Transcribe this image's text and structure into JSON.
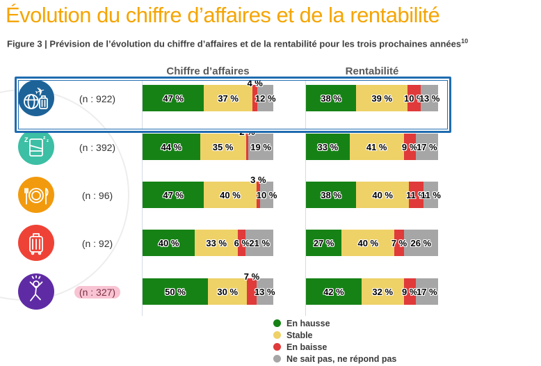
{
  "title": "Évolution du chiffre d’affaires et de la rentabilité",
  "figure_caption": "Figure 3 | Prévision de l’évolution du chiffre d’affaires et de la rentabilité pour les trois prochaines années",
  "figure_caption_sup": "10",
  "column_headers": {
    "chiffre_affaires": "Chiffre d’affaires",
    "rentabilite": "Rentabilité"
  },
  "legend": {
    "items": [
      {
        "label": "En hausse"
      },
      {
        "label": "Stable"
      },
      {
        "label": "En baisse"
      },
      {
        "label": "Ne sait pas, ne répond pas"
      }
    ]
  },
  "colors": {
    "green": "#168216",
    "yellow": "#EED167",
    "red": "#E03A3A",
    "gray": "#A6A6A6",
    "title": "#F5A502",
    "highlight": "#1F6CB0",
    "pink": "#F8C3D2",
    "header": "#595959",
    "travel": "#1D6398",
    "bed": "#3CBFA4",
    "restaurant": "#F29A0D",
    "luggage": "#EF4236",
    "person": "#5F2BA5"
  },
  "chart_data": {
    "type": "bar",
    "orientation": "horizontal",
    "stacked": true,
    "unit": "%",
    "title": "Évolution du chiffre d’affaires et de la rentabilité",
    "groups": [
      "Chiffre d’affaires",
      "Rentabilité"
    ],
    "series_names": [
      "En hausse",
      "Stable",
      "En baisse",
      "Ne sait pas, ne répond pas"
    ],
    "xlim": [
      0,
      100
    ],
    "rows": [
      {
        "n": "(n : 922)",
        "icon": "travel-icon",
        "highlighted": true,
        "chiffre_affaires": {
          "values": [
            47,
            37,
            4,
            12
          ],
          "labels": [
            "47 %",
            "37 %",
            "4 %",
            "12 %"
          ]
        },
        "rentabilite": {
          "values": [
            38,
            39,
            10,
            13
          ],
          "labels": [
            "38 %",
            "39 %",
            "10 %",
            "13 %"
          ]
        }
      },
      {
        "n": "(n : 392)",
        "icon": "bed-icon",
        "highlighted": false,
        "chiffre_affaires": {
          "values": [
            44,
            35,
            2,
            19
          ],
          "labels": [
            "44 %",
            "35 %",
            "2 %",
            "19 %"
          ]
        },
        "rentabilite": {
          "values": [
            33,
            41,
            9,
            17
          ],
          "labels": [
            "33 %",
            "41 %",
            "9 %",
            "17 %"
          ]
        }
      },
      {
        "n": "(n : 96)",
        "icon": "restaurant-icon",
        "highlighted": false,
        "chiffre_affaires": {
          "values": [
            47,
            40,
            3,
            10
          ],
          "labels": [
            "47 %",
            "40 %",
            "3 %",
            "10 %"
          ]
        },
        "rentabilite": {
          "values": [
            38,
            40,
            11,
            11
          ],
          "labels": [
            "38 %",
            "40 %",
            "11 %",
            "11 %"
          ]
        }
      },
      {
        "n": "(n : 92)",
        "icon": "luggage-icon",
        "highlighted": false,
        "chiffre_affaires": {
          "values": [
            40,
            33,
            6,
            21
          ],
          "labels": [
            "40 %",
            "33 %",
            "6 %",
            "21 %"
          ]
        },
        "rentabilite": {
          "values": [
            27,
            40,
            7,
            26
          ],
          "labels": [
            "27 %",
            "40 %",
            "7 %",
            "26 %"
          ]
        }
      },
      {
        "n": "(n : 327)",
        "icon": "person-icon",
        "highlighted": false,
        "pink_highlight": true,
        "chiffre_affaires": {
          "values": [
            50,
            30,
            7,
            13
          ],
          "labels": [
            "50 %",
            "30 %",
            "7 %",
            "13 %"
          ]
        },
        "rentabilite": {
          "values": [
            42,
            32,
            9,
            17
          ],
          "labels": [
            "42 %",
            "32 %",
            "9 %",
            "17 %"
          ]
        }
      }
    ]
  }
}
